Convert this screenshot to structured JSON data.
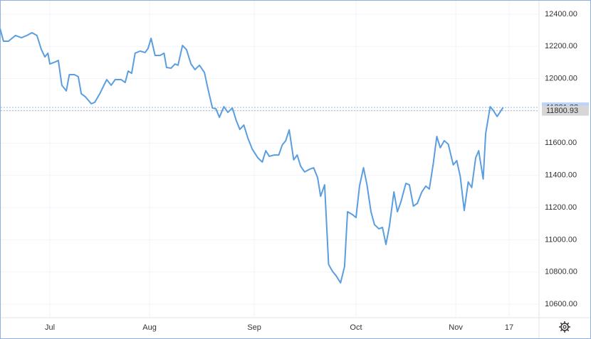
{
  "chart_data": {
    "type": "line",
    "series": [
      {
        "color": "#5a9ee0",
        "x": [
          0,
          0.7,
          1.7,
          3.1,
          4.3,
          5.4,
          6.4,
          7.4,
          8.3,
          9,
          9.6,
          10,
          11.1,
          11.7,
          12.4,
          13.3,
          13.9,
          14.9,
          15.7,
          16.3,
          17.1,
          18.3,
          19,
          20,
          21.4,
          22.3,
          23.1,
          24.3,
          25.1,
          25.7,
          26.4,
          27.1,
          28.1,
          29.1,
          29.7,
          30.3,
          31.1,
          32.1,
          32.9,
          33.4,
          34.3,
          35.1,
          35.7,
          36.6,
          37.4,
          38.3,
          39.1,
          40,
          41,
          41.7,
          42.6,
          43.3,
          44,
          44.9,
          45.7,
          46.6,
          47.4,
          48.1,
          48.9,
          49.7,
          50.6,
          51.7,
          52.6,
          53.3,
          54,
          55,
          55.9,
          56.6,
          57.3,
          58,
          58.9,
          59.6,
          60.3,
          61.1,
          62.1,
          62.9,
          63.7,
          64.3,
          65.1,
          65.9,
          66.7,
          67.4,
          68.3,
          69.1,
          69.7,
          70.7,
          71.4,
          72.1,
          72.9,
          73.6,
          74.4,
          75.1,
          76,
          76.7,
          77.4,
          78.1,
          79,
          79.7,
          80.4,
          81.4,
          82.1,
          82.9,
          83.7,
          84.6,
          85.4,
          86.1,
          86.9,
          87.6,
          88.3,
          89.1,
          89.9,
          90.9,
          91.6,
          92.3,
          93.1,
          93.9,
          94.6,
          95.4,
          96,
          96.9,
          97.4,
          98.3,
          98.9,
          99.7,
          100.9
        ],
        "values": [
          12312,
          12232,
          12232,
          12268,
          12254,
          12268,
          12285,
          12268,
          12180,
          12135,
          12158,
          12091,
          12104,
          12113,
          11959,
          11924,
          12025,
          12025,
          12012,
          11906,
          11888,
          11844,
          11853,
          11906,
          11994,
          11959,
          11994,
          11994,
          11976,
          12047,
          12033,
          12158,
          12171,
          12162,
          12188,
          12250,
          12144,
          12144,
          12158,
          12069,
          12065,
          12091,
          12083,
          12206,
          12180,
          12091,
          12056,
          12083,
          12038,
          11937,
          11818,
          11813,
          11760,
          11826,
          11791,
          11818,
          11738,
          11685,
          11712,
          11632,
          11562,
          11509,
          11482,
          11553,
          11518,
          11526,
          11526,
          11588,
          11615,
          11682,
          11496,
          11526,
          11456,
          11421,
          11438,
          11447,
          11385,
          11270,
          11341,
          10847,
          10803,
          10777,
          10733,
          10834,
          11174,
          11156,
          11138,
          11333,
          11447,
          11341,
          11174,
          11094,
          11068,
          11077,
          10971,
          11085,
          11297,
          11174,
          11235,
          11350,
          11341,
          11209,
          11226,
          11297,
          11333,
          11315,
          11474,
          11641,
          11571,
          11615,
          11593,
          11465,
          11491,
          11394,
          11182,
          11359,
          11324,
          11509,
          11553,
          11377,
          11659,
          11826,
          11804,
          11765,
          11821.28
        ]
      }
    ],
    "xlim": [
      0,
      108.1
    ],
    "xticks": [
      {
        "value": 10,
        "label": "Jul"
      },
      {
        "value": 30,
        "label": "Aug"
      },
      {
        "value": 51,
        "label": "Sep"
      },
      {
        "value": 71.4,
        "label": "Oct"
      },
      {
        "value": 91.4,
        "label": "Nov"
      },
      {
        "value": 102.1,
        "label": "17"
      }
    ],
    "ylim": [
      10516.5,
      12488
    ],
    "yticks": [
      {
        "value": 10600,
        "label": "10600.00"
      },
      {
        "value": 10800,
        "label": "10800.00"
      },
      {
        "value": 11000,
        "label": "11000.00"
      },
      {
        "value": 11200,
        "label": "11200.00"
      },
      {
        "value": 11400,
        "label": "11400.00"
      },
      {
        "value": 11600,
        "label": "11600.00"
      },
      {
        "value": 11800,
        "label": "11800.00"
      },
      {
        "value": 12000,
        "label": "12000.00"
      },
      {
        "value": 12200,
        "label": "12200.00"
      },
      {
        "value": 12400,
        "label": "12400.00"
      }
    ],
    "grid": true,
    "price_lines": [
      {
        "value": 11821.28,
        "color": "#bcd3f7",
        "line_color": "#9cc0ee"
      },
      {
        "value": 11800.93,
        "color": "#d6d6d6",
        "line_color": "#b4b4b4"
      }
    ]
  }
}
